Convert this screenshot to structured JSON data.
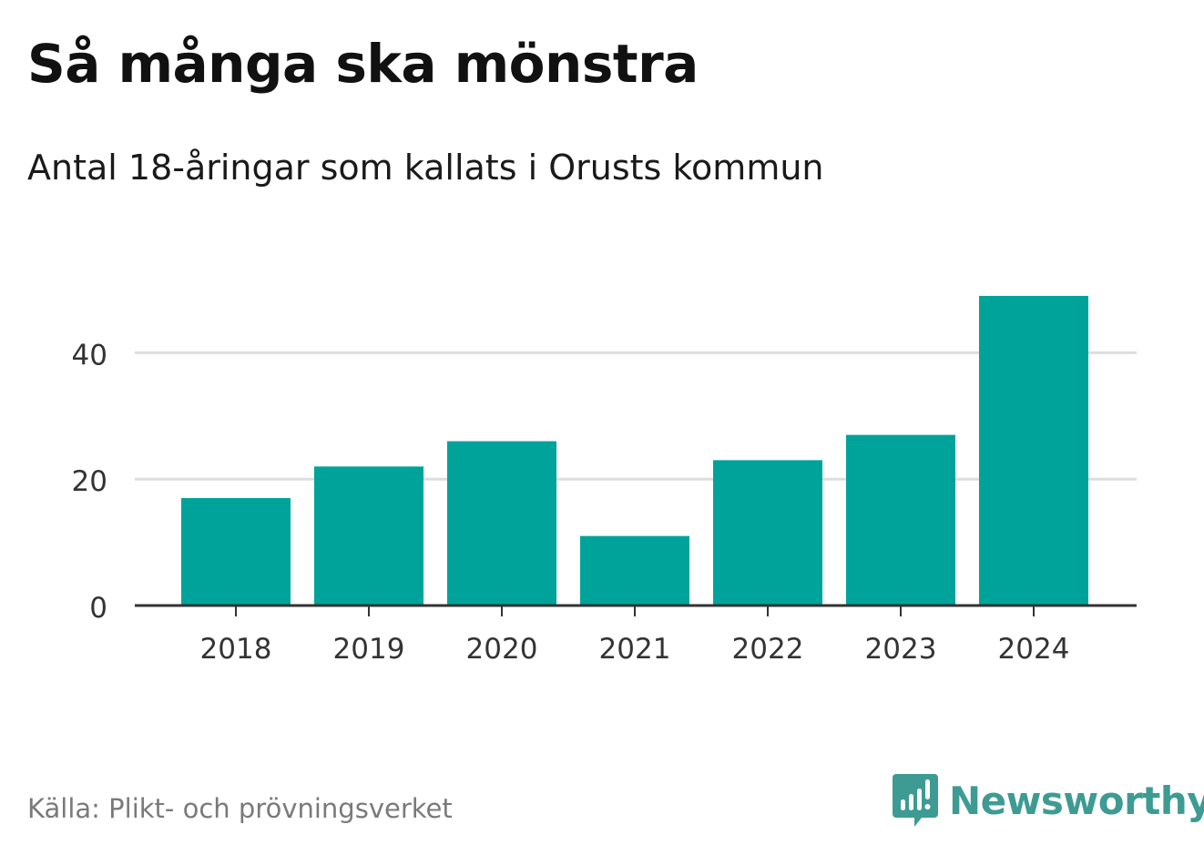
{
  "title": "Så många ska mönstra",
  "subtitle": "Antal 18-åringar som kallats i Orusts kommun",
  "source": "Källa: Plikt- och prövningsverket",
  "brand": {
    "name": "Newsworthy",
    "color": "#3d9b93",
    "icon": "newsworthy-logo-icon"
  },
  "colors": {
    "bar": "#00a39a",
    "grid": "#dddddd",
    "axis": "#333333",
    "tick_text": "#333333"
  },
  "chart_data": {
    "type": "bar",
    "title": "Så många ska mönstra",
    "subtitle": "Antal 18-åringar som kallats i Orusts kommun",
    "xlabel": "",
    "ylabel": "",
    "categories": [
      "2018",
      "2019",
      "2020",
      "2021",
      "2022",
      "2023",
      "2024"
    ],
    "values": [
      17,
      22,
      26,
      11,
      23,
      27,
      49
    ],
    "ylim": [
      0,
      50
    ],
    "yticks": [
      0,
      20,
      40
    ],
    "grid": true,
    "legend": "none"
  }
}
